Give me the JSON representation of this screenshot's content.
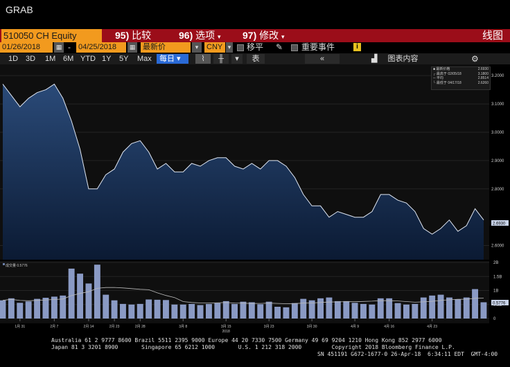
{
  "header": {
    "grab": "GRAB"
  },
  "command_bar": {
    "ticker": "510050 CH Equity",
    "compare": {
      "num": "95)",
      "label": "比较"
    },
    "options": {
      "num": "96)",
      "label": "选项"
    },
    "edit": {
      "num": "97)",
      "label": "修改"
    },
    "view": "线图"
  },
  "toolbar": {
    "start_date": "01/26/2018",
    "dash": "-",
    "end_date": "04/25/2018",
    "price_type": "最新价",
    "currency": "CNY",
    "shift_label": "移平",
    "events_label": "重要事件",
    "info_badge": "i"
  },
  "period_buttons": [
    "1D",
    "3D",
    "1M",
    "6M",
    "YTD",
    "1Y",
    "5Y",
    "Max"
  ],
  "frequency": "每日",
  "table_label": "表",
  "chart_content_label": "图表内容",
  "legend": {
    "rows": [
      {
        "label": "最新价格",
        "value": "2.6930"
      },
      {
        "label": "最高于 02/05/18",
        "value": "3.1800"
      },
      {
        "label": "平均",
        "value": "2.8514"
      },
      {
        "label": "最低于 04/17/18",
        "value": "2.6260"
      }
    ]
  },
  "volume_label": "成交量 0.5776",
  "price_tag": "2.6930",
  "volume_tag": "0.5776",
  "footer": {
    "line1": "Australia 61 2 9777 8600 Brazil 5511 2395 9000 Europe 44 20 7330 7500 Germany 49 69 9204 1210 Hong Kong 852 2977 6000",
    "line2": "Japan 81 3 3201 8900       Singapore 65 6212 1000       U.S. 1 212 318 2000         Copyright 2018 Bloomberg Finance L.P.",
    "line3": "SN 451191 G672-1677-0 26-Apr-18  6:34:11 EDT  GMT-4:00"
  },
  "chart_data": {
    "type": "area",
    "title": "",
    "price_axis": {
      "ticks": [
        "3.2000",
        "3.1000",
        "3.0000",
        "2.9000",
        "2.8000",
        "2.6000"
      ],
      "ylim": [
        2.55,
        3.22
      ]
    },
    "volume_axis": {
      "ticks": [
        "2B",
        "1.5B",
        "1B",
        "0.5B",
        "0"
      ],
      "ylim": [
        0,
        2
      ]
    },
    "x_tick_labels": [
      "1月 31",
      "2月 7",
      "2月 14",
      "2月 23",
      "2月 28",
      "3月 8",
      "3月 15",
      "3月 23",
      "3月 30",
      "4月 9",
      "4月 16",
      "4月 23"
    ],
    "x_year_label": "2018",
    "price": [
      3.17,
      3.13,
      3.09,
      3.12,
      3.14,
      3.15,
      3.17,
      3.12,
      3.04,
      2.94,
      2.8,
      2.8,
      2.85,
      2.87,
      2.93,
      2.96,
      2.97,
      2.93,
      2.87,
      2.89,
      2.86,
      2.86,
      2.89,
      2.88,
      2.9,
      2.91,
      2.91,
      2.88,
      2.87,
      2.89,
      2.87,
      2.9,
      2.9,
      2.88,
      2.84,
      2.78,
      2.74,
      2.74,
      2.7,
      2.72,
      2.71,
      2.7,
      2.7,
      2.72,
      2.78,
      2.78,
      2.76,
      2.75,
      2.72,
      2.66,
      2.64,
      2.66,
      2.69,
      2.65,
      2.67,
      2.73,
      2.69
    ],
    "volume": [
      0.65,
      0.72,
      0.56,
      0.61,
      0.7,
      0.74,
      0.78,
      0.82,
      1.78,
      1.6,
      1.25,
      1.92,
      0.85,
      0.65,
      0.52,
      0.5,
      0.52,
      0.68,
      0.67,
      0.66,
      0.5,
      0.5,
      0.52,
      0.48,
      0.52,
      0.55,
      0.62,
      0.52,
      0.6,
      0.58,
      0.51,
      0.6,
      0.42,
      0.4,
      0.55,
      0.7,
      0.65,
      0.72,
      0.75,
      0.62,
      0.62,
      0.56,
      0.52,
      0.5,
      0.72,
      0.72,
      0.55,
      0.5,
      0.52,
      0.75,
      0.82,
      0.85,
      0.75,
      0.68,
      0.75,
      1.05,
      0.58
    ]
  }
}
